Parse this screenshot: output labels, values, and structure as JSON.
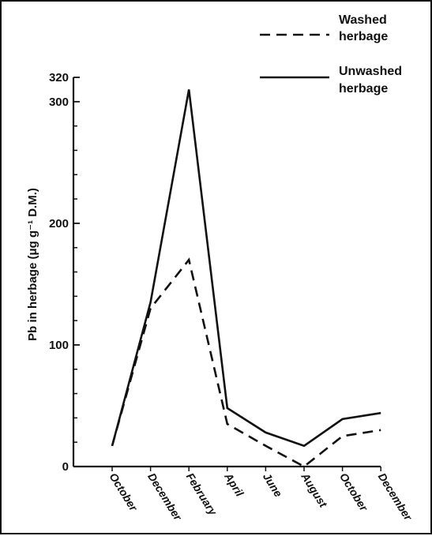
{
  "chart_data": {
    "type": "line",
    "ylabel": "Pb in herbage (μg g⁻¹ D.M.)",
    "xlabel": "",
    "ylim": [
      0,
      320
    ],
    "yticks": [
      0,
      100,
      200,
      300,
      320
    ],
    "ytick_labels": [
      "0",
      "100",
      "200",
      "300",
      "320"
    ],
    "categories": [
      "October",
      "December",
      "February",
      "April",
      "June",
      "August",
      "October",
      "December"
    ],
    "grid": false,
    "legend_position": "top-right",
    "series": [
      {
        "name": "Washed herbage",
        "style": "dashed",
        "color": "#111111",
        "points": [
          [
            0,
            17
          ],
          [
            1,
            130
          ],
          [
            2,
            170
          ],
          [
            3,
            35
          ],
          [
            4,
            17
          ],
          [
            5,
            0
          ],
          [
            6,
            25
          ],
          [
            7,
            30
          ]
        ]
      },
      {
        "name": "Unwashed herbage",
        "style": "solid",
        "color": "#111111",
        "points": [
          [
            0,
            17
          ],
          [
            1,
            135
          ],
          [
            2,
            310
          ],
          [
            3,
            48
          ],
          [
            4,
            28
          ],
          [
            5,
            17
          ],
          [
            6,
            39
          ],
          [
            7,
            44
          ]
        ]
      }
    ]
  }
}
